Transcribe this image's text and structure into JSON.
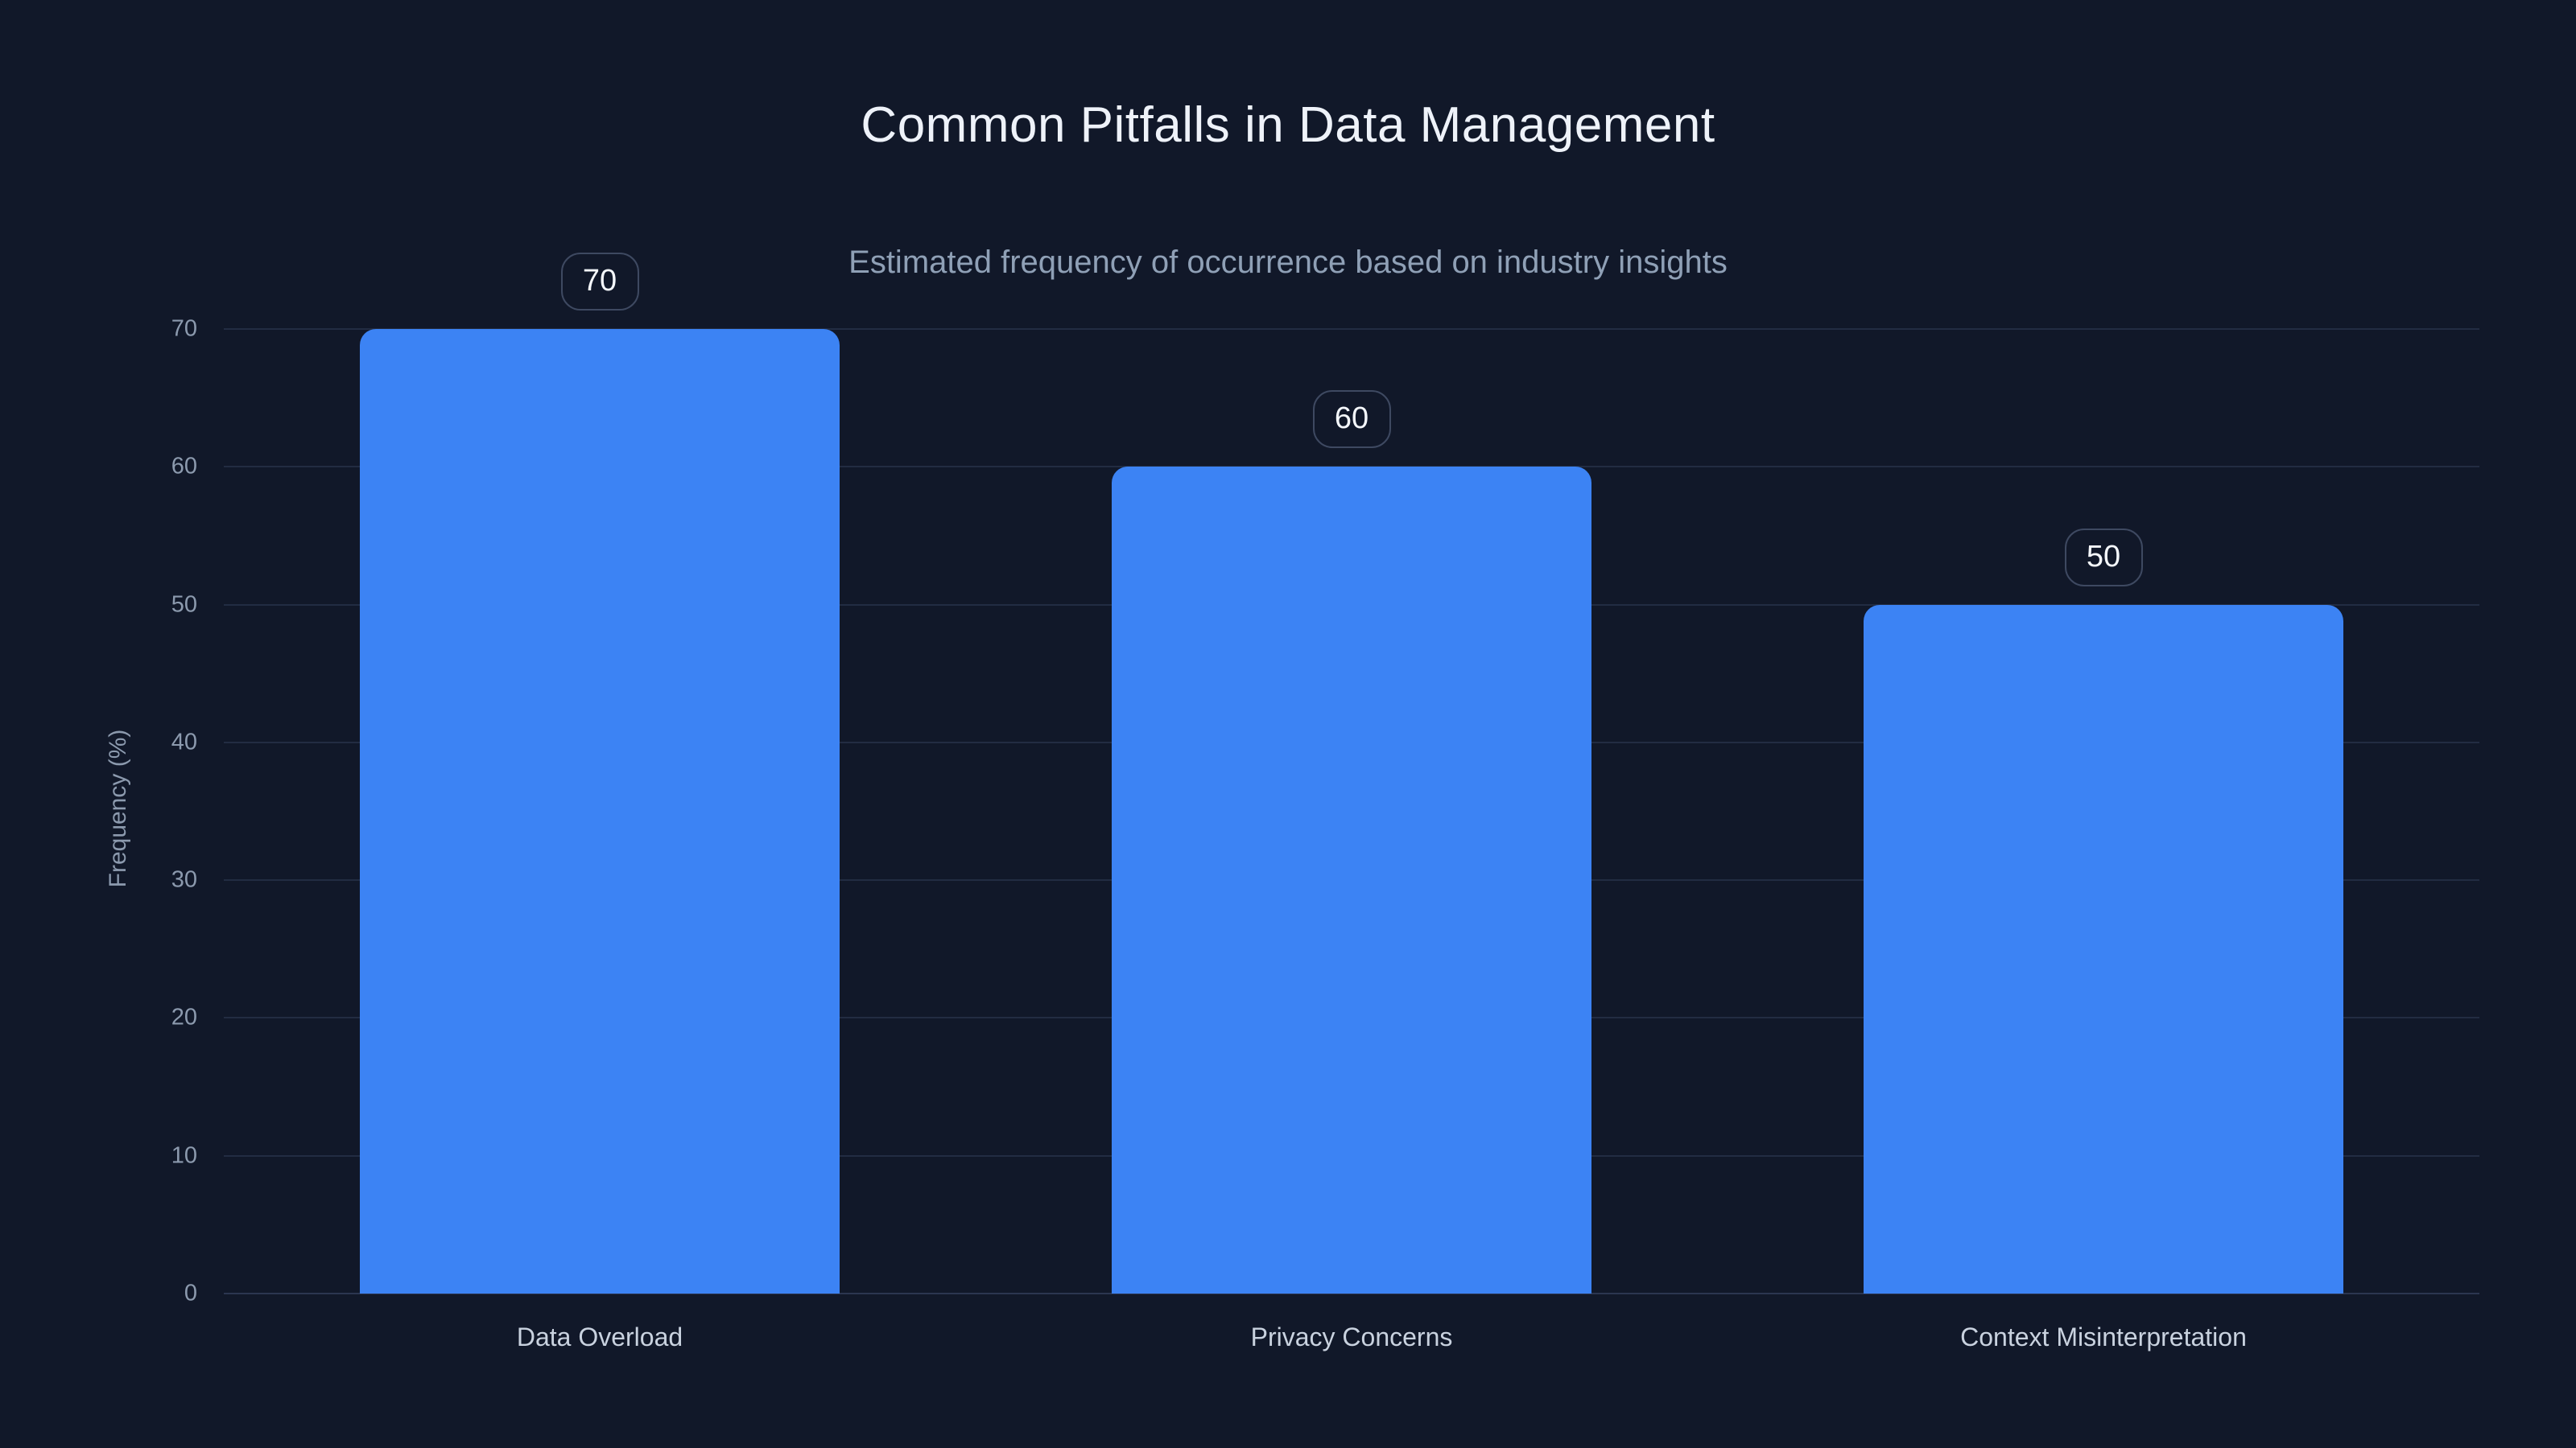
{
  "colors": {
    "background": "#111829",
    "bar": "#3c83f4",
    "gridline": "#222c42",
    "axis_line": "#2b3650",
    "title_text": "#eef2f9",
    "subtitle_text": "#8fa0b6",
    "axis_text": "#8c9aae",
    "category_text": "#c9d2df",
    "badge_border": "#3e4961",
    "badge_text": "#f4f7fb"
  },
  "chart_data": {
    "type": "bar",
    "title": "Common Pitfalls in Data Management",
    "subtitle": "Estimated frequency of occurrence based on industry insights",
    "categories": [
      "Data Overload",
      "Privacy Concerns",
      "Context Misinterpretation"
    ],
    "values": [
      70,
      60,
      50
    ],
    "value_labels": [
      "70",
      "60",
      "50"
    ],
    "xlabel": "",
    "ylabel": "Frequency (%)",
    "ylim": [
      0,
      70
    ],
    "yticks": [
      0,
      10,
      20,
      30,
      40,
      50,
      60,
      70
    ],
    "grid": true,
    "legend": "none",
    "background": "dark"
  }
}
